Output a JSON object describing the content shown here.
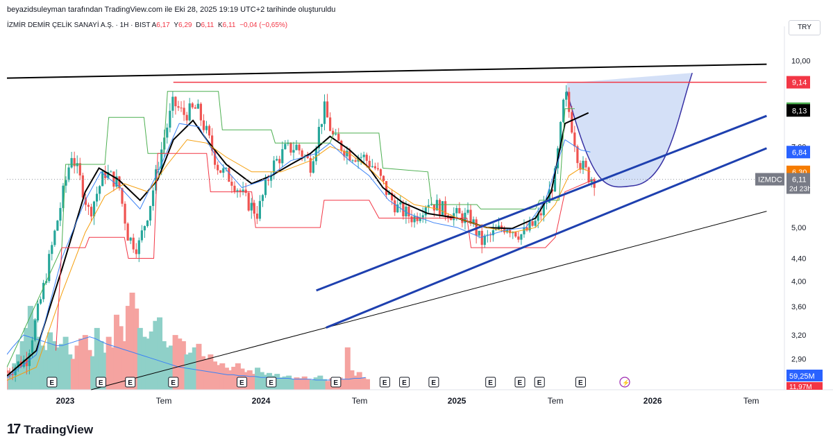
{
  "header": {
    "created_by": "beyazidsuleyman tarafından TradingView.com ile Eki 28, 2025 19:19 UTC+2 tarihinde oluşturuldu"
  },
  "symbol": {
    "name": "İZMİR DEMİR ÇELİK SANAYİ A.Ş. · 1H · BIST",
    "ohlc": [
      {
        "label": "A",
        "value": "6,17"
      },
      {
        "label": "Y",
        "value": "6,29"
      },
      {
        "label": "D",
        "value": "6,11"
      },
      {
        "label": "K",
        "value": "6,11"
      }
    ],
    "change": "−0,04 (−0,65%)"
  },
  "currency": "TRY",
  "footer": {
    "brand": "TradingView",
    "logo": "17"
  },
  "colors": {
    "up": "#26a69a",
    "down": "#ef5350",
    "red_line": "#f23645",
    "channel": "#1e40af",
    "cup_fill": "#c9d8f5",
    "ma_black": "#000000",
    "ma_orange": "#f59e0b",
    "ma_blue": "#3b82f6",
    "ma_green": "#4caf50",
    "volume_up": "#8fd0c8",
    "volume_down": "#f5a3a0"
  },
  "chart_data": {
    "type": "candlestick",
    "title": "İZMİR DEMİR ÇELİK SANAYİ A.Ş. · 1H · BIST",
    "yaxis_scale": "log",
    "ylim": [
      2.55,
      11.2
    ],
    "xlim": [
      2022.7,
      2026.5
    ],
    "ytick_labels": [
      {
        "v": 10.0,
        "t": "10,00"
      },
      {
        "v": 7.0,
        "t": "7,00"
      },
      {
        "v": 5.0,
        "t": "5,00"
      },
      {
        "v": 4.4,
        "t": "4,40"
      },
      {
        "v": 4.0,
        "t": "4,00"
      },
      {
        "v": 3.6,
        "t": "3,60"
      },
      {
        "v": 3.2,
        "t": "3,20"
      },
      {
        "v": 2.9,
        "t": "2,90"
      }
    ],
    "xtick_labels": [
      {
        "v": 2023.0,
        "t": "2023",
        "bold": true
      },
      {
        "v": 2023.5,
        "t": "Tem",
        "bold": false
      },
      {
        "v": 2024.0,
        "t": "2024",
        "bold": true
      },
      {
        "v": 2024.5,
        "t": "Tem",
        "bold": false
      },
      {
        "v": 2025.0,
        "t": "2025",
        "bold": true
      },
      {
        "v": 2025.5,
        "t": "Tem",
        "bold": false
      },
      {
        "v": 2026.0,
        "t": "2026",
        "bold": true
      },
      {
        "v": 2026.5,
        "t": "Tem",
        "bold": false
      }
    ],
    "price_labels": [
      {
        "v": 9.14,
        "t": "9,14",
        "color": "#f23645"
      },
      {
        "v": 8.19,
        "t": "8,19",
        "color": "#4caf50"
      },
      {
        "v": 8.13,
        "t": "8,13",
        "color": "#000000"
      },
      {
        "v": 6.84,
        "t": "6,84",
        "color": "#2962ff"
      },
      {
        "v": 6.3,
        "t": "6,30",
        "color": "#f57c00"
      }
    ],
    "last_price": {
      "v": 6.11,
      "symbol": "IZMDC",
      "price": "6,11",
      "countdown": "2d 23h"
    },
    "volume_labels": [
      {
        "t": "59,25M",
        "color": "#2962ff"
      },
      {
        "t": "11,97M",
        "color": "#f23645"
      }
    ],
    "earnings_markers": {
      "label": "E",
      "x": [
        2022.93,
        2023.18,
        2023.33,
        2023.55,
        2023.9,
        2024.05,
        2024.38,
        2024.63,
        2024.73,
        2024.88,
        2025.17,
        2025.32,
        2025.42,
        2025.63
      ]
    },
    "anchor_prices": [
      [
        2022.7,
        2.75
      ],
      [
        2022.8,
        2.9
      ],
      [
        2022.88,
        3.8
      ],
      [
        2022.95,
        5.0
      ],
      [
        2023.03,
        6.8
      ],
      [
        2023.08,
        6.0
      ],
      [
        2023.12,
        5.3
      ],
      [
        2023.2,
        6.3
      ],
      [
        2023.27,
        6.0
      ],
      [
        2023.32,
        4.8
      ],
      [
        2023.37,
        4.6
      ],
      [
        2023.43,
        5.5
      ],
      [
        2023.5,
        7.2
      ],
      [
        2023.55,
        8.4
      ],
      [
        2023.6,
        8.0
      ],
      [
        2023.67,
        8.2
      ],
      [
        2023.72,
        7.4
      ],
      [
        2023.78,
        6.4
      ],
      [
        2023.85,
        6.1
      ],
      [
        2023.92,
        5.6
      ],
      [
        2023.98,
        5.3
      ],
      [
        2024.05,
        6.4
      ],
      [
        2024.12,
        6.9
      ],
      [
        2024.18,
        7.0
      ],
      [
        2024.25,
        6.5
      ],
      [
        2024.32,
        8.2
      ],
      [
        2024.37,
        7.2
      ],
      [
        2024.45,
        6.8
      ],
      [
        2024.52,
        6.7
      ],
      [
        2024.58,
        6.4
      ],
      [
        2024.65,
        5.7
      ],
      [
        2024.7,
        5.4
      ],
      [
        2024.78,
        5.2
      ],
      [
        2024.85,
        5.6
      ],
      [
        2024.92,
        5.4
      ],
      [
        2025.0,
        5.25
      ],
      [
        2025.07,
        5.2
      ],
      [
        2025.12,
        4.7
      ],
      [
        2025.18,
        4.85
      ],
      [
        2025.25,
        5.05
      ],
      [
        2025.33,
        4.85
      ],
      [
        2025.4,
        5.1
      ],
      [
        2025.45,
        5.5
      ],
      [
        2025.5,
        6.2
      ],
      [
        2025.55,
        8.8
      ],
      [
        2025.58,
        7.8
      ],
      [
        2025.62,
        6.6
      ],
      [
        2025.67,
        6.2
      ],
      [
        2025.7,
        6.11
      ]
    ],
    "moving_averages": [
      {
        "name": "MA black",
        "color": "#000000",
        "points": [
          [
            2022.7,
            2.7
          ],
          [
            2022.85,
            3.0
          ],
          [
            2022.98,
            4.2
          ],
          [
            2023.1,
            5.8
          ],
          [
            2023.17,
            6.4
          ],
          [
            2023.27,
            6.1
          ],
          [
            2023.38,
            5.6
          ],
          [
            2023.47,
            6.1
          ],
          [
            2023.55,
            7.2
          ],
          [
            2023.65,
            7.8
          ],
          [
            2023.72,
            7.2
          ],
          [
            2023.82,
            6.5
          ],
          [
            2023.95,
            6.0
          ],
          [
            2024.05,
            6.2
          ],
          [
            2024.15,
            6.5
          ],
          [
            2024.25,
            6.8
          ],
          [
            2024.35,
            7.3
          ],
          [
            2024.45,
            6.9
          ],
          [
            2024.55,
            6.4
          ],
          [
            2024.62,
            5.9
          ],
          [
            2024.72,
            5.55
          ],
          [
            2024.85,
            5.3
          ],
          [
            2025.0,
            5.2
          ],
          [
            2025.15,
            5.0
          ],
          [
            2025.28,
            4.98
          ],
          [
            2025.4,
            5.2
          ],
          [
            2025.48,
            5.8
          ],
          [
            2025.55,
            7.7
          ],
          [
            2025.62,
            7.9
          ],
          [
            2025.67,
            8.05
          ]
        ]
      },
      {
        "name": "MA orange",
        "color": "#f59e0b",
        "points": [
          [
            2022.7,
            2.65
          ],
          [
            2022.85,
            2.8
          ],
          [
            2022.98,
            3.8
          ],
          [
            2023.1,
            4.9
          ],
          [
            2023.2,
            5.7
          ],
          [
            2023.3,
            6.0
          ],
          [
            2023.42,
            5.8
          ],
          [
            2023.52,
            6.5
          ],
          [
            2023.62,
            7.2
          ],
          [
            2023.72,
            7.1
          ],
          [
            2023.82,
            6.7
          ],
          [
            2023.95,
            6.3
          ],
          [
            2024.1,
            6.3
          ],
          [
            2024.25,
            6.6
          ],
          [
            2024.35,
            7.0
          ],
          [
            2024.45,
            6.8
          ],
          [
            2024.55,
            6.4
          ],
          [
            2024.65,
            5.9
          ],
          [
            2024.78,
            5.5
          ],
          [
            2024.9,
            5.4
          ],
          [
            2025.0,
            5.2
          ],
          [
            2025.15,
            5.0
          ],
          [
            2025.28,
            4.9
          ],
          [
            2025.4,
            5.0
          ],
          [
            2025.5,
            5.5
          ],
          [
            2025.57,
            6.2
          ],
          [
            2025.63,
            6.4
          ],
          [
            2025.68,
            6.3
          ]
        ]
      },
      {
        "name": "MA blue",
        "color": "#3b82f6",
        "points": [
          [
            2022.7,
            2.68
          ],
          [
            2022.85,
            2.95
          ],
          [
            2022.98,
            4.4
          ],
          [
            2023.1,
            5.6
          ],
          [
            2023.18,
            6.3
          ],
          [
            2023.28,
            5.9
          ],
          [
            2023.38,
            5.4
          ],
          [
            2023.48,
            6.4
          ],
          [
            2023.58,
            7.7
          ],
          [
            2023.68,
            7.6
          ],
          [
            2023.78,
            6.6
          ],
          [
            2023.9,
            5.9
          ],
          [
            2024.02,
            6.1
          ],
          [
            2024.15,
            6.6
          ],
          [
            2024.28,
            6.8
          ],
          [
            2024.35,
            7.1
          ],
          [
            2024.45,
            6.6
          ],
          [
            2024.55,
            6.2
          ],
          [
            2024.65,
            5.6
          ],
          [
            2024.75,
            5.3
          ],
          [
            2024.88,
            5.1
          ],
          [
            2025.0,
            5.0
          ],
          [
            2025.12,
            4.8
          ],
          [
            2025.25,
            4.95
          ],
          [
            2025.35,
            5.0
          ],
          [
            2025.45,
            5.6
          ],
          [
            2025.55,
            7.2
          ],
          [
            2025.63,
            6.9
          ],
          [
            2025.68,
            6.84
          ]
        ]
      },
      {
        "name": "MA green",
        "color": "#4caf50",
        "points": [
          [
            2022.7,
            2.8
          ],
          [
            2022.98,
            4.6
          ],
          [
            2023.0,
            6.5
          ],
          [
            2023.2,
            6.5
          ],
          [
            2023.22,
            7.9
          ],
          [
            2023.4,
            7.9
          ],
          [
            2023.42,
            6.8
          ],
          [
            2023.5,
            6.8
          ],
          [
            2023.52,
            8.8
          ],
          [
            2023.78,
            8.8
          ],
          [
            2023.8,
            7.5
          ],
          [
            2024.05,
            7.5
          ],
          [
            2024.07,
            7.1
          ],
          [
            2024.35,
            7.1
          ],
          [
            2024.37,
            7.4
          ],
          [
            2024.6,
            7.4
          ],
          [
            2024.62,
            6.4
          ],
          [
            2024.85,
            6.3
          ],
          [
            2024.87,
            5.5
          ],
          [
            2025.1,
            5.5
          ],
          [
            2025.12,
            5.4
          ],
          [
            2025.4,
            5.4
          ],
          [
            2025.42,
            5.6
          ],
          [
            2025.52,
            5.6
          ],
          [
            2025.55,
            8.19
          ],
          [
            2025.6,
            8.19
          ]
        ]
      },
      {
        "name": "MA red",
        "color": "#f23645",
        "points": [
          [
            2022.95,
            3.0
          ],
          [
            2022.98,
            4.6
          ],
          [
            2023.1,
            4.6
          ],
          [
            2023.12,
            4.8
          ],
          [
            2023.3,
            4.8
          ],
          [
            2023.32,
            4.4
          ],
          [
            2023.45,
            4.4
          ],
          [
            2023.47,
            6.8
          ],
          [
            2023.72,
            6.8
          ],
          [
            2023.74,
            5.8
          ],
          [
            2023.95,
            5.8
          ],
          [
            2023.97,
            5.0
          ],
          [
            2024.3,
            5.0
          ],
          [
            2024.32,
            5.6
          ],
          [
            2024.55,
            5.6
          ],
          [
            2024.6,
            5.2
          ],
          [
            2025.05,
            5.2
          ],
          [
            2025.07,
            4.6
          ],
          [
            2025.45,
            4.6
          ],
          [
            2025.5,
            4.8
          ],
          [
            2025.55,
            5.8
          ],
          [
            2025.7,
            6.11
          ]
        ]
      }
    ],
    "trend_lines": [
      {
        "name": "resistance",
        "color": "#000000",
        "width": 2,
        "from": [
          2022.7,
          9.3
        ],
        "to": [
          2026.58,
          9.85
        ]
      },
      {
        "name": "peak level",
        "color": "#f23645",
        "width": 1.5,
        "from": [
          2023.55,
          9.14
        ],
        "to": [
          2026.58,
          9.14
        ]
      },
      {
        "name": "long support",
        "color": "#000000",
        "width": 1,
        "from": [
          2023.13,
          2.55
        ],
        "to": [
          2026.58,
          5.35
        ]
      },
      {
        "name": "channel upper",
        "color": "#1e40af",
        "width": 3,
        "from": [
          2024.28,
          3.85
        ],
        "to": [
          2026.58,
          7.95
        ]
      },
      {
        "name": "channel lower",
        "color": "#1e40af",
        "width": 3,
        "from": [
          2024.33,
          3.3
        ],
        "to": [
          2026.58,
          6.95
        ]
      }
    ],
    "cup_pattern": {
      "left": [
        2025.56,
        8.8
      ],
      "bottom": [
        2025.9,
        5.95
      ],
      "right": [
        2026.2,
        9.5
      ]
    },
    "volume_series": {
      "x_start": 2022.7,
      "x_step": 0.02,
      "values": [
        22,
        18,
        30,
        40,
        55,
        70,
        95,
        80,
        60,
        50,
        45,
        65,
        55,
        48,
        52,
        60,
        40,
        35,
        50,
        58,
        62,
        45,
        38,
        70,
        55,
        42,
        60,
        48,
        85,
        72,
        55,
        95,
        110,
        92,
        70,
        60,
        58,
        66,
        78,
        82,
        55,
        48,
        50,
        62,
        58,
        55,
        40,
        42,
        48,
        52,
        38,
        35,
        40,
        32,
        28,
        30,
        25,
        22,
        26,
        30,
        24,
        20,
        22,
        18,
        25,
        20,
        17,
        19,
        16,
        18,
        14,
        15,
        16,
        12,
        14,
        13,
        15,
        12,
        11,
        14,
        16,
        12,
        10,
        13,
        11,
        14,
        12,
        48,
        22,
        16,
        20,
        14,
        12
      ],
      "volume_ma": [
        40,
        48,
        55,
        62,
        60,
        58,
        56,
        54,
        52,
        50,
        50,
        52,
        54,
        56,
        58,
        60,
        58,
        55,
        52,
        50,
        48,
        46,
        44,
        42,
        40,
        38,
        36,
        34,
        32,
        30,
        28,
        26,
        25,
        24,
        23,
        22,
        21,
        20,
        19,
        18,
        17,
        17,
        16,
        16,
        15,
        15,
        14,
        14,
        14,
        13,
        13,
        13,
        12,
        12,
        12,
        12,
        11,
        11,
        11,
        11,
        12,
        12,
        12,
        13,
        13,
        14
      ]
    }
  }
}
